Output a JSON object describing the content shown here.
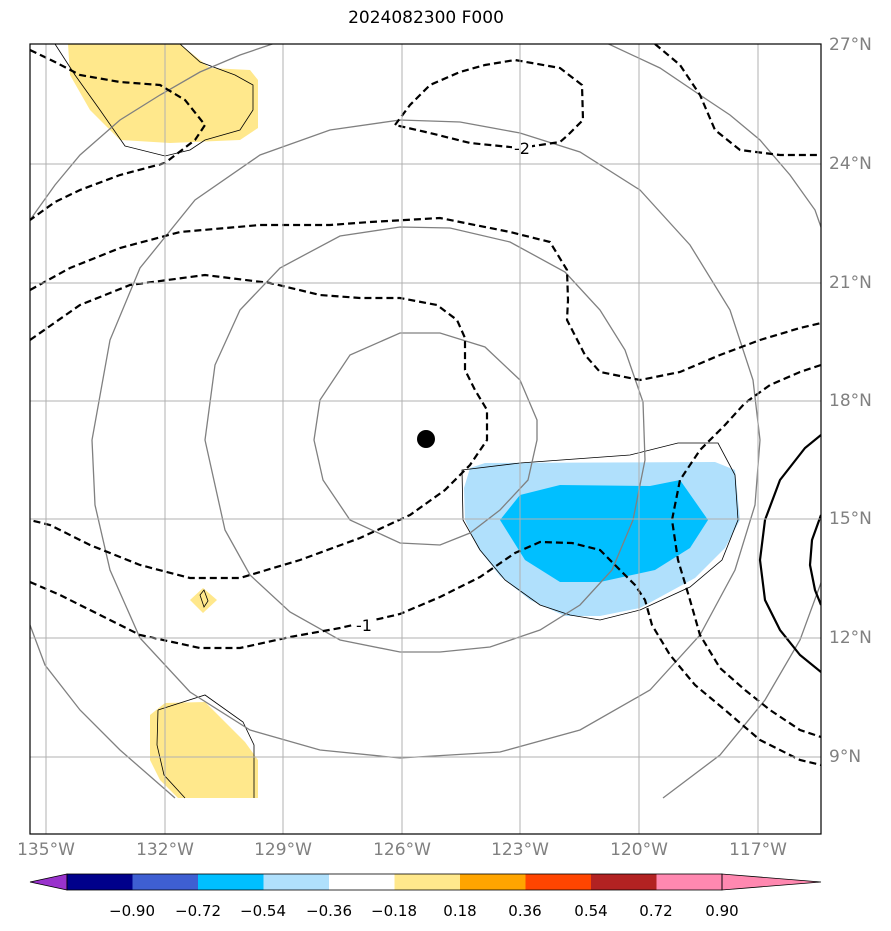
{
  "title": "2024082300 F000",
  "lat_labels": [
    "27°N",
    "24°N",
    "21°N",
    "18°N",
    "15°N",
    "12°N",
    "9°N"
  ],
  "lon_labels": [
    "135°W",
    "132°W",
    "129°W",
    "126°W",
    "123°W",
    "120°W",
    "117°W"
  ],
  "contour_labels": [
    "-2",
    "-1"
  ],
  "colorbar": {
    "colors": [
      "#9932cc",
      "#00008b",
      "#3e5fd2",
      "#00bfff",
      "#b0e0fc",
      "#ffffff",
      "#ffe88c",
      "#ffa500",
      "#ff4500",
      "#b22222",
      "#ff88b0"
    ],
    "labels": [
      "−0.90",
      "−0.72",
      "−0.54",
      "−0.36",
      "−0.18",
      "0.18",
      "0.36",
      "0.54",
      "0.72",
      "0.90"
    ]
  }
}
